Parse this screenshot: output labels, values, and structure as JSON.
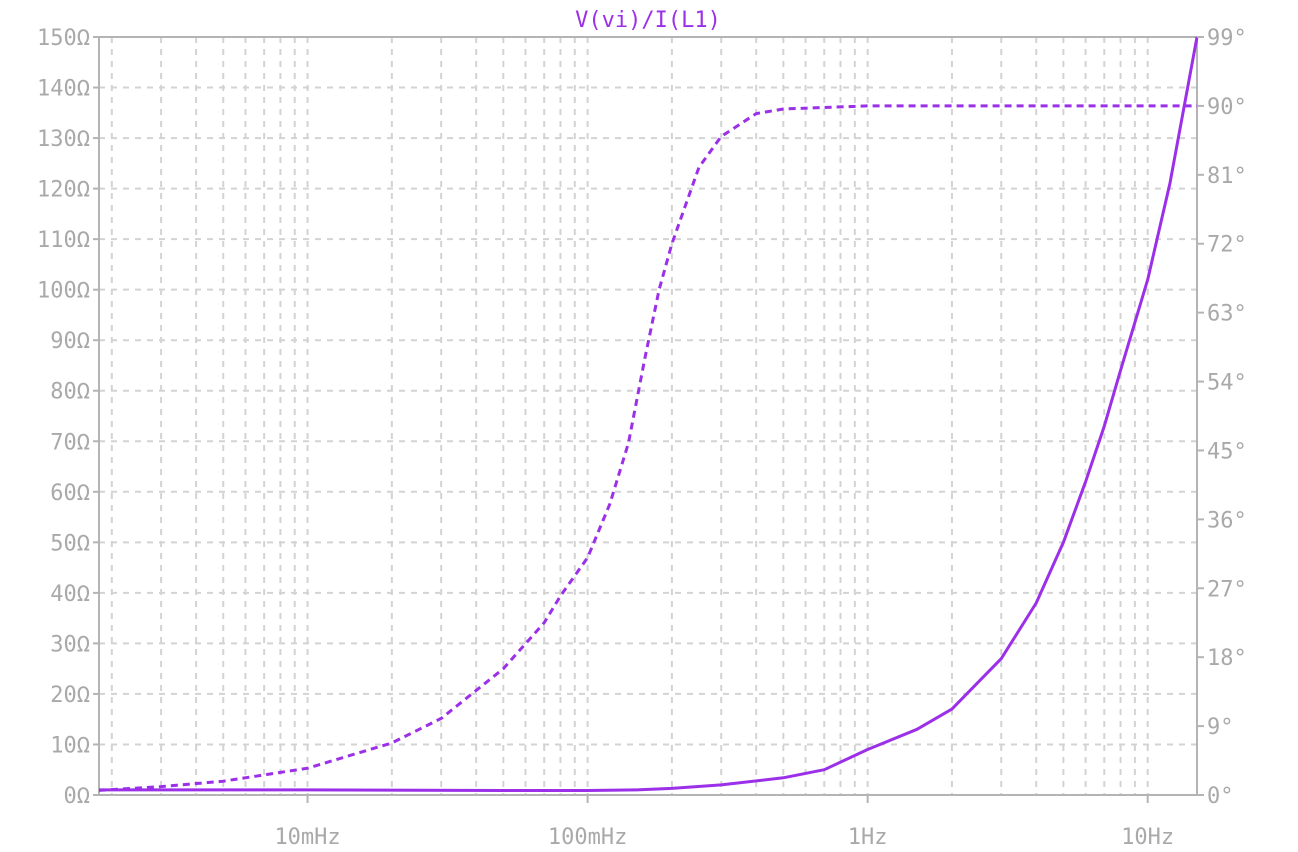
{
  "chart_data": {
    "type": "line",
    "title": "V(vi)/I(L1)",
    "x_scale": "log",
    "xlim": [
      0.0018,
      15
    ],
    "x_ticks": [
      {
        "value": 0.01,
        "label": "10mHz"
      },
      {
        "value": 0.1,
        "label": "100mHz"
      },
      {
        "value": 1,
        "label": "1Hz"
      },
      {
        "value": 10,
        "label": "10Hz"
      }
    ],
    "ylim_left": [
      0,
      150
    ],
    "y_ticks_left": [
      {
        "value": 0,
        "label": "0Ω"
      },
      {
        "value": 10,
        "label": "10Ω"
      },
      {
        "value": 20,
        "label": "20Ω"
      },
      {
        "value": 30,
        "label": "30Ω"
      },
      {
        "value": 40,
        "label": "40Ω"
      },
      {
        "value": 50,
        "label": "50Ω"
      },
      {
        "value": 60,
        "label": "60Ω"
      },
      {
        "value": 70,
        "label": "70Ω"
      },
      {
        "value": 80,
        "label": "80Ω"
      },
      {
        "value": 90,
        "label": "90Ω"
      },
      {
        "value": 100,
        "label": "100Ω"
      },
      {
        "value": 110,
        "label": "110Ω"
      },
      {
        "value": 120,
        "label": "120Ω"
      },
      {
        "value": 130,
        "label": "130Ω"
      },
      {
        "value": 140,
        "label": "140Ω"
      },
      {
        "value": 150,
        "label": "150Ω"
      }
    ],
    "ylim_right": [
      0,
      99
    ],
    "y_ticks_right": [
      {
        "value": 0,
        "label": "0°"
      },
      {
        "value": 9,
        "label": "9°"
      },
      {
        "value": 18,
        "label": "18°"
      },
      {
        "value": 27,
        "label": "27°"
      },
      {
        "value": 36,
        "label": "36°"
      },
      {
        "value": 45,
        "label": "45°"
      },
      {
        "value": 54,
        "label": "54°"
      },
      {
        "value": 63,
        "label": "63°"
      },
      {
        "value": 72,
        "label": "72°"
      },
      {
        "value": 81,
        "label": "81°"
      },
      {
        "value": 90,
        "label": "90°"
      },
      {
        "value": 99,
        "label": "99°"
      }
    ],
    "grid": true,
    "series": [
      {
        "kind": "magnitude",
        "axis": "left",
        "style": "solid",
        "color": "#9b30e8",
        "points": [
          [
            0.0018,
            1.0
          ],
          [
            0.01,
            1.0
          ],
          [
            0.05,
            0.9
          ],
          [
            0.1,
            0.9
          ],
          [
            0.15,
            1.0
          ],
          [
            0.2,
            1.3
          ],
          [
            0.3,
            2.0
          ],
          [
            0.5,
            3.4
          ],
          [
            0.7,
            5.0
          ],
          [
            1.0,
            9.0
          ],
          [
            1.5,
            13.0
          ],
          [
            2.0,
            17.0
          ],
          [
            3.0,
            27.0
          ],
          [
            4.0,
            38.0
          ],
          [
            5.0,
            50.0
          ],
          [
            6.0,
            62.0
          ],
          [
            7.0,
            73.0
          ],
          [
            8.0,
            84.0
          ],
          [
            10.0,
            102.0
          ],
          [
            12.0,
            121.0
          ],
          [
            15.0,
            150.0
          ]
        ]
      },
      {
        "kind": "phase",
        "axis": "right",
        "style": "dashed",
        "color": "#9b30e8",
        "points": [
          [
            0.0018,
            0.6
          ],
          [
            0.003,
            1.1
          ],
          [
            0.005,
            1.8
          ],
          [
            0.01,
            3.5
          ],
          [
            0.02,
            6.8
          ],
          [
            0.03,
            10.0
          ],
          [
            0.05,
            16.5
          ],
          [
            0.07,
            22.5
          ],
          [
            0.08,
            26.0
          ],
          [
            0.1,
            31.0
          ],
          [
            0.12,
            38.0
          ],
          [
            0.14,
            46.0
          ],
          [
            0.16,
            57.0
          ],
          [
            0.18,
            66.0
          ],
          [
            0.2,
            72.0
          ],
          [
            0.25,
            82.0
          ],
          [
            0.3,
            86.0
          ],
          [
            0.4,
            89.0
          ],
          [
            0.5,
            89.6
          ],
          [
            1.0,
            90.0
          ],
          [
            10.0,
            90.0
          ],
          [
            15.0,
            90.0
          ]
        ]
      }
    ]
  }
}
